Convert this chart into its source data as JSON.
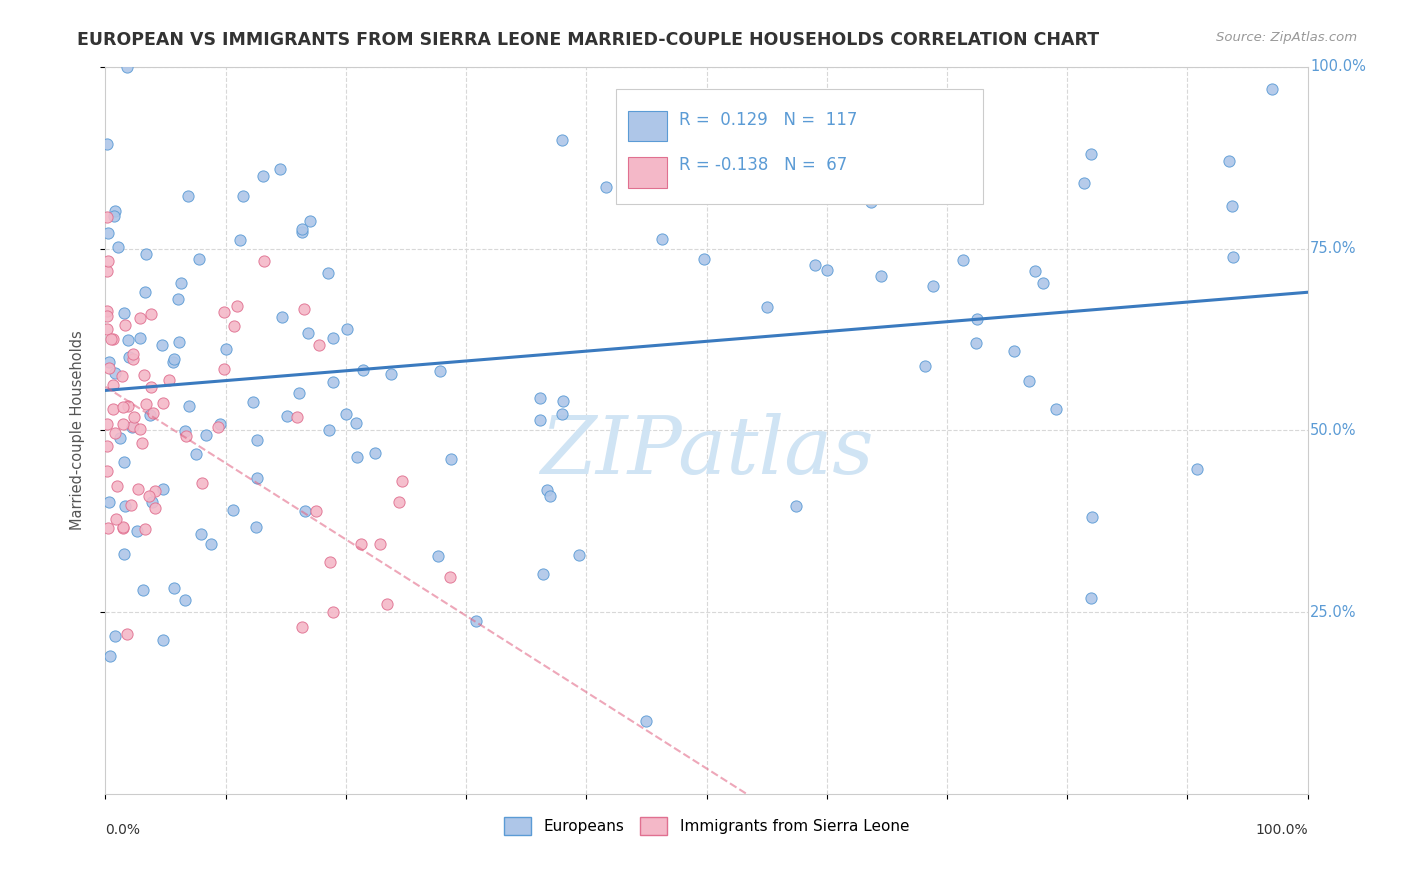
{
  "title": "EUROPEAN VS IMMIGRANTS FROM SIERRA LEONE MARRIED-COUPLE HOUSEHOLDS CORRELATION CHART",
  "source": "Source: ZipAtlas.com",
  "ylabel": "Married-couple Households",
  "legend_label_blue": "Europeans",
  "legend_label_pink": "Immigrants from Sierra Leone",
  "R_blue": 0.129,
  "N_blue": 117,
  "R_pink": -0.138,
  "N_pink": 67,
  "blue_color": "#aec6e8",
  "blue_edge_color": "#5b9bd5",
  "pink_color": "#f4b8c8",
  "pink_edge_color": "#e07090",
  "blue_line_color": "#3a7abf",
  "pink_line_color": "#e06080",
  "watermark_color": "#d0e4f4",
  "background_color": "#ffffff",
  "grid_color": "#d8d8d8",
  "title_color": "#333333",
  "axis_label_color": "#555555",
  "tick_label_color": "#5b9bd5",
  "ytick_labels": [
    "25.0%",
    "50.0%",
    "75.0%",
    "100.0%"
  ],
  "ytick_vals": [
    0.25,
    0.5,
    0.75,
    1.0
  ]
}
